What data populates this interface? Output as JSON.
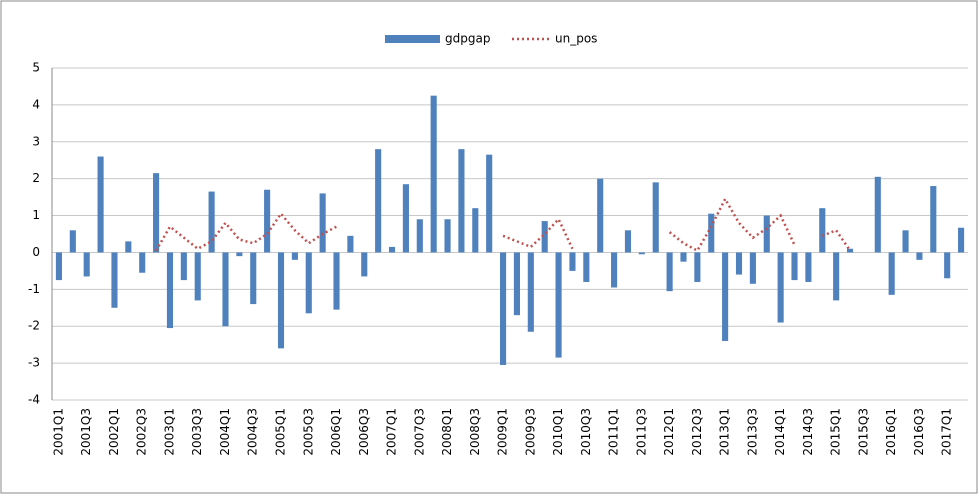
{
  "chart_data": {
    "type": "bar",
    "legend": "top",
    "grid": true,
    "categories": [
      "2001Q1",
      null,
      "2001Q3",
      null,
      "2002Q1",
      null,
      "2002Q3",
      null,
      "2003Q1",
      null,
      "2003Q3",
      null,
      "2004Q1",
      null,
      "2004Q3",
      null,
      "2005Q1",
      null,
      "2005Q3",
      null,
      "2006Q1",
      null,
      "2006Q3",
      null,
      "2007Q1",
      null,
      "2007Q3",
      null,
      "2008Q1",
      null,
      "2008Q3",
      null,
      "2009Q1",
      null,
      "2009Q3",
      null,
      "2010Q1",
      null,
      "2010Q3",
      null,
      "2011Q1",
      null,
      "2011Q3",
      null,
      "2012Q1",
      null,
      "2012Q3",
      null,
      "2013Q1",
      null,
      "2013Q3",
      null,
      "2014Q1",
      null,
      "2014Q3",
      null,
      "2015Q1",
      null,
      "2015Q3",
      null,
      "2016Q1",
      null,
      "2016Q3",
      null,
      "2017Q1",
      null
    ],
    "series": [
      {
        "name": "gdpgap",
        "type": "bar",
        "color": "#4f81bd",
        "values": [
          -0.75,
          0.6,
          -0.65,
          2.6,
          -1.5,
          0.3,
          -0.55,
          2.15,
          -2.05,
          -0.75,
          -1.3,
          1.65,
          -2.0,
          -0.1,
          -1.4,
          1.7,
          -2.6,
          -0.2,
          -1.65,
          1.6,
          -1.55,
          0.45,
          -0.65,
          2.8,
          0.15,
          1.85,
          0.9,
          4.25,
          0.9,
          2.8,
          1.2,
          2.65,
          -3.05,
          -1.7,
          -2.15,
          0.85,
          -2.85,
          -0.5,
          -0.8,
          2.0,
          -0.95,
          0.6,
          -0.05,
          1.9,
          -1.05,
          -0.25,
          -0.8,
          1.05,
          -2.4,
          -0.6,
          -0.85,
          1.0,
          -1.9,
          -0.75,
          -0.8,
          1.2,
          -1.3,
          0.1,
          0,
          2.05,
          -1.15,
          0.6,
          -0.2,
          1.8,
          -0.7,
          0.67
        ]
      },
      {
        "name": "un_pos",
        "type": "line",
        "color": "#c0504d",
        "values": [
          null,
          null,
          null,
          null,
          null,
          null,
          null,
          0.05,
          0.7,
          0.4,
          0.1,
          0.3,
          0.8,
          0.35,
          0.25,
          0.5,
          1.05,
          0.6,
          0.25,
          0.5,
          0.7,
          null,
          null,
          null,
          null,
          null,
          null,
          null,
          null,
          null,
          null,
          null,
          0.45,
          0.3,
          0.15,
          0.5,
          0.9,
          0.1,
          null,
          null,
          null,
          null,
          null,
          null,
          0.55,
          0.25,
          0.05,
          0.7,
          1.45,
          0.8,
          0.4,
          0.65,
          1.0,
          0.2,
          null,
          0.45,
          0.6,
          0.05,
          null,
          null,
          null,
          null,
          null,
          null,
          null,
          null
        ]
      }
    ],
    "ylim": [
      -4,
      5
    ],
    "yticks": [
      -4,
      -3,
      -2,
      -1,
      0,
      1,
      2,
      3,
      4,
      5
    ]
  }
}
